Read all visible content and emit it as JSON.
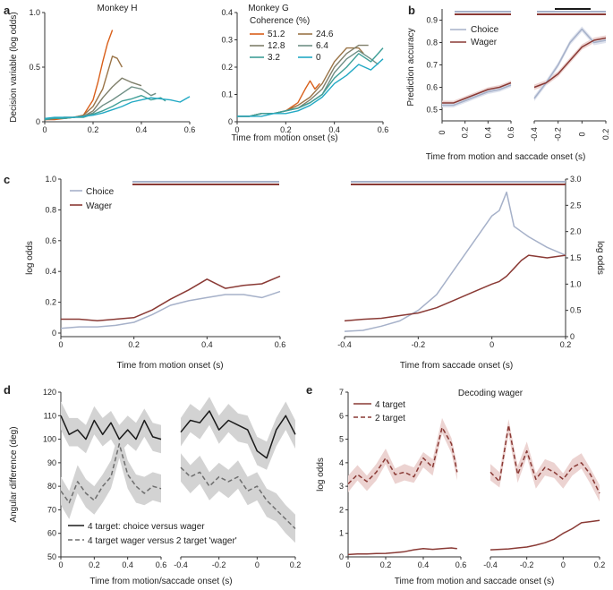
{
  "colors": {
    "choice": "#a6b1c9",
    "wager": "#8a3a35",
    "black": "#1a1a1a",
    "gray": "#6e6e6e",
    "shade": "#d3d3d3",
    "pink": "#ecd3d1",
    "coh": [
      "#d95f1a",
      "#9a7447",
      "#7f7f6b",
      "#6f8f85",
      "#3f9f97",
      "#22a9c4"
    ]
  },
  "chart_data": [
    {
      "panel": "a",
      "type": "line",
      "title": "Monkey H",
      "ylabel": "Decision variable (log odds)",
      "ylim": [
        0,
        1
      ],
      "xlim": [
        0,
        0.6
      ],
      "yticks": [
        "0",
        "0.5",
        "1.0"
      ],
      "xticks": [
        "0",
        "0.2",
        "0.4",
        "0.6"
      ],
      "series": [
        {
          "name": "51.2",
          "x": [
            0,
            0.04,
            0.08,
            0.12,
            0.16,
            0.2,
            0.22,
            0.24,
            0.26,
            0.28
          ],
          "y": [
            0.02,
            0.02,
            0.03,
            0.04,
            0.06,
            0.2,
            0.36,
            0.55,
            0.72,
            0.84
          ]
        },
        {
          "name": "24.6",
          "x": [
            0,
            0.04,
            0.08,
            0.12,
            0.16,
            0.2,
            0.24,
            0.28,
            0.3,
            0.32
          ],
          "y": [
            0.02,
            0.03,
            0.04,
            0.04,
            0.06,
            0.14,
            0.3,
            0.6,
            0.58,
            0.5
          ]
        },
        {
          "name": "12.8",
          "x": [
            0,
            0.04,
            0.08,
            0.12,
            0.16,
            0.2,
            0.24,
            0.28,
            0.32,
            0.36,
            0.4
          ],
          "y": [
            0.02,
            0.03,
            0.03,
            0.04,
            0.05,
            0.1,
            0.22,
            0.32,
            0.4,
            0.36,
            0.33
          ]
        },
        {
          "name": "6.4",
          "x": [
            0,
            0.04,
            0.08,
            0.12,
            0.16,
            0.2,
            0.24,
            0.28,
            0.32,
            0.36,
            0.4,
            0.44,
            0.46
          ],
          "y": [
            0.02,
            0.03,
            0.04,
            0.04,
            0.05,
            0.08,
            0.15,
            0.2,
            0.26,
            0.32,
            0.3,
            0.24,
            0.26
          ]
        },
        {
          "name": "3.2",
          "x": [
            0,
            0.04,
            0.08,
            0.12,
            0.16,
            0.2,
            0.24,
            0.28,
            0.32,
            0.36,
            0.4,
            0.44,
            0.48,
            0.5
          ],
          "y": [
            0.02,
            0.03,
            0.03,
            0.04,
            0.04,
            0.07,
            0.1,
            0.14,
            0.19,
            0.21,
            0.24,
            0.2,
            0.22,
            0.19
          ]
        },
        {
          "name": "0",
          "x": [
            0,
            0.04,
            0.08,
            0.12,
            0.16,
            0.2,
            0.24,
            0.28,
            0.32,
            0.36,
            0.4,
            0.44,
            0.48,
            0.52,
            0.56,
            0.6
          ],
          "y": [
            0.03,
            0.04,
            0.04,
            0.04,
            0.05,
            0.06,
            0.08,
            0.11,
            0.14,
            0.18,
            0.2,
            0.22,
            0.21,
            0.2,
            0.18,
            0.23
          ]
        }
      ]
    },
    {
      "panel": "a2",
      "type": "line",
      "title": "Monkey G",
      "legend_title": "Coherence (%)",
      "ylim": [
        0,
        0.4
      ],
      "xlim": [
        0,
        0.6
      ],
      "yticks": [
        "0",
        "0.1",
        "0.2",
        "0.3",
        "0.4"
      ],
      "xticks": [
        "0",
        "0.2",
        "0.4",
        "0.6"
      ],
      "series": [
        {
          "name": "51.2",
          "x": [
            0,
            0.05,
            0.1,
            0.15,
            0.2,
            0.25,
            0.28,
            0.3,
            0.32,
            0.34
          ],
          "y": [
            0.02,
            0.02,
            0.03,
            0.03,
            0.04,
            0.07,
            0.12,
            0.15,
            0.12,
            0.14
          ]
        },
        {
          "name": "24.6",
          "x": [
            0,
            0.05,
            0.1,
            0.15,
            0.2,
            0.25,
            0.3,
            0.35,
            0.4,
            0.45,
            0.5,
            0.52
          ],
          "y": [
            0.02,
            0.02,
            0.03,
            0.03,
            0.04,
            0.06,
            0.09,
            0.14,
            0.22,
            0.27,
            0.27,
            0.25
          ]
        },
        {
          "name": "12.8",
          "x": [
            0,
            0.05,
            0.1,
            0.15,
            0.2,
            0.25,
            0.3,
            0.35,
            0.4,
            0.45,
            0.5,
            0.54
          ],
          "y": [
            0.02,
            0.02,
            0.03,
            0.03,
            0.04,
            0.05,
            0.08,
            0.12,
            0.2,
            0.25,
            0.28,
            0.28
          ]
        },
        {
          "name": "6.4",
          "x": [
            0,
            0.05,
            0.1,
            0.15,
            0.2,
            0.25,
            0.3,
            0.35,
            0.4,
            0.45,
            0.5,
            0.55,
            0.58
          ],
          "y": [
            0.02,
            0.02,
            0.03,
            0.03,
            0.04,
            0.05,
            0.07,
            0.1,
            0.18,
            0.23,
            0.26,
            0.23,
            0.21
          ]
        },
        {
          "name": "3.2",
          "x": [
            0,
            0.05,
            0.1,
            0.15,
            0.2,
            0.25,
            0.3,
            0.35,
            0.4,
            0.45,
            0.5,
            0.55,
            0.6
          ],
          "y": [
            0.02,
            0.02,
            0.03,
            0.03,
            0.04,
            0.05,
            0.07,
            0.1,
            0.16,
            0.2,
            0.25,
            0.22,
            0.27
          ]
        },
        {
          "name": "0",
          "x": [
            0,
            0.05,
            0.1,
            0.15,
            0.2,
            0.25,
            0.3,
            0.35,
            0.4,
            0.45,
            0.5,
            0.55,
            0.6
          ],
          "y": [
            0.02,
            0.02,
            0.02,
            0.03,
            0.03,
            0.04,
            0.06,
            0.09,
            0.14,
            0.17,
            0.21,
            0.19,
            0.23
          ]
        }
      ]
    },
    {
      "panel": "b",
      "type": "line",
      "ylabel": "Prediction accuracy",
      "ylim": [
        0.45,
        0.95
      ],
      "yticks": [
        "0.5",
        "0.6",
        "0.7",
        "0.8",
        "0.9"
      ],
      "xticks_left": [
        "0",
        "0.2",
        "0.4",
        "0.6"
      ],
      "xticks_right": [
        "-0.4",
        "-0.2",
        "0",
        "0.2"
      ],
      "legend": [
        "Choice",
        "Wager"
      ],
      "left": {
        "x": [
          0,
          0.1,
          0.2,
          0.3,
          0.4,
          0.5,
          0.6
        ],
        "choice": [
          0.52,
          0.52,
          0.54,
          0.56,
          0.58,
          0.59,
          0.61
        ],
        "wager": [
          0.53,
          0.53,
          0.55,
          0.57,
          0.59,
          0.6,
          0.62
        ]
      },
      "right": {
        "x": [
          -0.4,
          -0.3,
          -0.2,
          -0.1,
          0,
          0.1,
          0.2
        ],
        "choice": [
          0.55,
          0.62,
          0.7,
          0.8,
          0.86,
          0.8,
          0.81
        ],
        "wager": [
          0.6,
          0.62,
          0.66,
          0.72,
          0.78,
          0.81,
          0.82
        ]
      }
    },
    {
      "panel": "c",
      "type": "line",
      "ylabel": "log odds",
      "ylabel_right": "log odds",
      "legend": [
        "Choice",
        "Wager"
      ],
      "xticks_left": [
        "0",
        "0.2",
        "0.4",
        "0.6"
      ],
      "xticks_right": [
        "-0.4",
        "-0.2",
        "0",
        "0.2"
      ],
      "yticks_left": [
        "0",
        "0.2",
        "0.4",
        "0.6",
        "0.8",
        "1.0"
      ],
      "yticks_right": [
        "0",
        "0.5",
        "1.0",
        "1.5",
        "2.0",
        "2.5",
        "3.0"
      ],
      "left": {
        "x": [
          0,
          0.05,
          0.1,
          0.15,
          0.2,
          0.25,
          0.3,
          0.35,
          0.4,
          0.45,
          0.5,
          0.55,
          0.6
        ],
        "choice": [
          0.03,
          0.04,
          0.04,
          0.05,
          0.07,
          0.12,
          0.18,
          0.21,
          0.23,
          0.25,
          0.25,
          0.23,
          0.27
        ],
        "wager": [
          0.09,
          0.09,
          0.08,
          0.09,
          0.1,
          0.15,
          0.22,
          0.28,
          0.35,
          0.29,
          0.31,
          0.32,
          0.37
        ]
      },
      "right": {
        "x": [
          -0.4,
          -0.35,
          -0.3,
          -0.25,
          -0.2,
          -0.15,
          -0.1,
          -0.05,
          0,
          0.02,
          0.04,
          0.06,
          0.08,
          0.1,
          0.15,
          0.2
        ],
        "choice": [
          0.1,
          0.12,
          0.2,
          0.3,
          0.5,
          0.8,
          1.3,
          1.8,
          2.3,
          2.4,
          2.75,
          2.1,
          2.0,
          1.9,
          1.7,
          1.55
        ],
        "wager": [
          0.3,
          0.33,
          0.35,
          0.4,
          0.45,
          0.55,
          0.7,
          0.85,
          1.0,
          1.05,
          1.15,
          1.3,
          1.45,
          1.55,
          1.5,
          1.55
        ]
      }
    },
    {
      "panel": "d",
      "type": "line",
      "ylabel": "Angular difference (deg)",
      "ylim": [
        50,
        120
      ],
      "yticks": [
        "50",
        "60",
        "70",
        "80",
        "90",
        "100",
        "110",
        "120"
      ],
      "xticks_left": [
        "0",
        "0.2",
        "0.4",
        "0.6"
      ],
      "xticks_right": [
        "-0.4",
        "-0.2",
        "0",
        "0.2"
      ],
      "legend": [
        "4 target: choice versus wager",
        "4 target wager versus 2 target 'wager'"
      ],
      "left": {
        "x": [
          0,
          0.05,
          0.1,
          0.15,
          0.2,
          0.25,
          0.3,
          0.35,
          0.4,
          0.45,
          0.5,
          0.55,
          0.6
        ],
        "solid": [
          110,
          102,
          104,
          100,
          108,
          102,
          107,
          100,
          104,
          100,
          108,
          101,
          100
        ],
        "dashed": [
          78,
          73,
          82,
          77,
          74,
          80,
          84,
          98,
          85,
          80,
          77,
          80,
          79
        ]
      },
      "right": {
        "x": [
          -0.4,
          -0.35,
          -0.3,
          -0.25,
          -0.2,
          -0.15,
          -0.1,
          -0.05,
          0,
          0.05,
          0.1,
          0.15,
          0.2
        ],
        "solid": [
          103,
          108,
          107,
          112,
          104,
          108,
          106,
          104,
          95,
          92,
          104,
          110,
          102
        ],
        "dashed": [
          88,
          84,
          86,
          80,
          84,
          82,
          84,
          78,
          80,
          74,
          70,
          66,
          62
        ]
      }
    },
    {
      "panel": "e",
      "type": "line",
      "title": "Decoding wager",
      "ylabel": "log odds",
      "ylim": [
        0,
        7
      ],
      "yticks": [
        "0",
        "1",
        "2",
        "3",
        "4",
        "5",
        "6",
        "7"
      ],
      "xticks_left": [
        "0",
        "0.2",
        "0.4",
        "0.6"
      ],
      "xticks_right": [
        "-0.4",
        "-0.2",
        "0",
        "0.2"
      ],
      "legend": [
        "4 target",
        "2 target"
      ],
      "left": {
        "x": [
          0,
          0.05,
          0.1,
          0.15,
          0.2,
          0.25,
          0.3,
          0.35,
          0.4,
          0.45,
          0.5,
          0.55,
          0.58
        ],
        "four": [
          0.1,
          0.12,
          0.12,
          0.14,
          0.15,
          0.18,
          0.22,
          0.3,
          0.35,
          0.32,
          0.35,
          0.38,
          0.35
        ],
        "two": [
          3.1,
          3.5,
          3.2,
          3.6,
          4.2,
          3.5,
          3.6,
          3.4,
          4.2,
          3.8,
          5.5,
          4.8,
          3.6
        ]
      },
      "right": {
        "x": [
          -0.4,
          -0.35,
          -0.3,
          -0.25,
          -0.2,
          -0.15,
          -0.1,
          -0.05,
          0,
          0.05,
          0.1,
          0.15,
          0.2
        ],
        "four": [
          0.3,
          0.32,
          0.34,
          0.38,
          0.42,
          0.5,
          0.6,
          0.75,
          1.0,
          1.2,
          1.45,
          1.5,
          1.55
        ],
        "two": [
          3.6,
          3.2,
          5.6,
          3.5,
          4.5,
          3.3,
          3.8,
          3.6,
          3.3,
          3.8,
          4.0,
          3.5,
          2.7
        ]
      }
    }
  ],
  "labels": {
    "a": "a",
    "b": "b",
    "c": "c",
    "d": "d",
    "e": "e",
    "a_xlabel": "Time from motion onset (s)",
    "b_xlabel": "Time from motion and saccade onset (s)",
    "c_xlabel_left": "Time from motion onset (s)",
    "c_xlabel_right": "Time from saccade onset (s)",
    "d_xlabel": "Time from motion/saccade onset (s)",
    "e_xlabel": "Time from motion and saccade onset (s)"
  }
}
